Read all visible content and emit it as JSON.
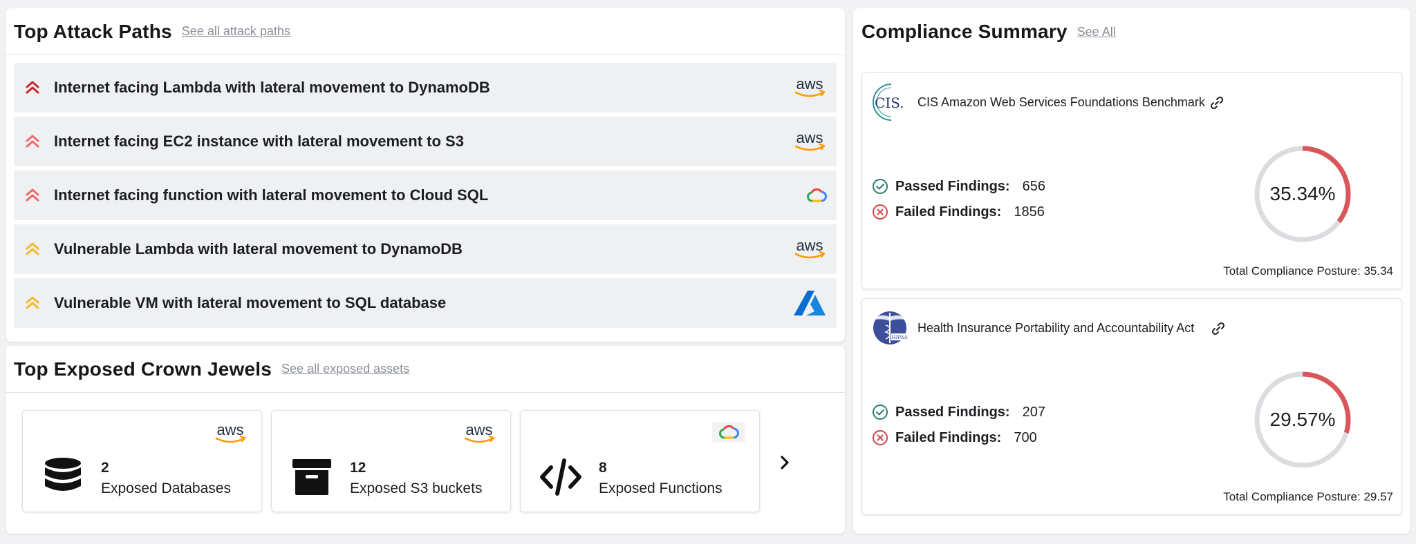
{
  "attack_paths": {
    "title": "Top Attack Paths",
    "see_all": "See all attack paths",
    "items": [
      {
        "label": "Internet facing Lambda with lateral movement to DynamoDB",
        "severity": "critical",
        "provider": "aws",
        "color": "#c62828"
      },
      {
        "label": "Internet facing EC2 instance with lateral movement to S3",
        "severity": "high",
        "provider": "aws",
        "color": "#ef6a6a"
      },
      {
        "label": "Internet facing function with lateral movement to Cloud SQL",
        "severity": "high",
        "provider": "gcp",
        "color": "#ef6a6a"
      },
      {
        "label": "Vulnerable Lambda with lateral movement to DynamoDB",
        "severity": "medium",
        "provider": "aws",
        "color": "#f5b82e"
      },
      {
        "label": "Vulnerable VM with lateral movement to SQL database",
        "severity": "medium",
        "provider": "azure",
        "color": "#f5b82e"
      }
    ]
  },
  "crown_jewels": {
    "title": "Top Exposed Crown Jewels",
    "see_all": "See all exposed assets",
    "tiles": [
      {
        "count": "2",
        "label": "Exposed Databases",
        "icon": "database-icon",
        "provider": "aws"
      },
      {
        "count": "12",
        "label": "Exposed S3 buckets",
        "icon": "archive-box-icon",
        "provider": "aws"
      },
      {
        "count": "8",
        "label": "Exposed Functions",
        "icon": "code-icon",
        "provider": "gcp"
      }
    ]
  },
  "compliance": {
    "title": "Compliance Summary",
    "see_all": "See All",
    "frameworks": [
      {
        "logo_text": "CIS.",
        "name": "CIS Amazon Web Services Foundations Benchmark",
        "passed_label": "Passed Findings:",
        "passed": "656",
        "failed_label": "Failed Findings:",
        "failed": "1856",
        "percent_text": "35.34%",
        "percent": 35.34,
        "posture": "Total Compliance Posture: 35.34"
      },
      {
        "logo_text": "HIPAA",
        "name": "Health Insurance Portability and Accountability Act",
        "passed_label": "Passed Findings:",
        "passed": "207",
        "failed_label": "Failed Findings:",
        "failed": "700",
        "percent_text": "29.57%",
        "percent": 29.57,
        "posture": "Total Compliance Posture: 29.57"
      }
    ]
  },
  "colors": {
    "gauge_fill": "#d9575b",
    "gauge_track": "#dadcdf",
    "passed": "#2a7d6e",
    "failed": "#d64545",
    "aws_orange": "#ff9900",
    "azure_blue": "#0a6ed1"
  }
}
